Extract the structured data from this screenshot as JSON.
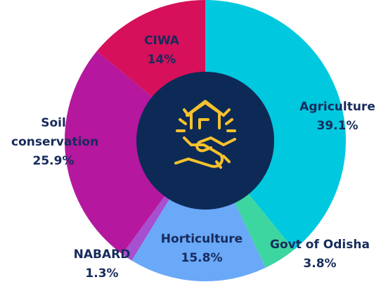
{
  "chart_data": {
    "type": "donut",
    "categories": [
      "Agriculture",
      "Govt of Odisha",
      "Horticulture",
      "NABARD",
      "Soil conservation",
      "CIWA"
    ],
    "values": [
      39.1,
      3.8,
      15.8,
      1.3,
      25.9,
      14
    ],
    "value_labels": [
      "39.1%",
      "3.8%",
      "15.8%",
      "1.3%",
      "25.9%",
      "14%"
    ],
    "colors": [
      "#00c8df",
      "#3dd6a0",
      "#6aa8f8",
      "#a64fcf",
      "#b5179e",
      "#d6105a"
    ]
  }
}
